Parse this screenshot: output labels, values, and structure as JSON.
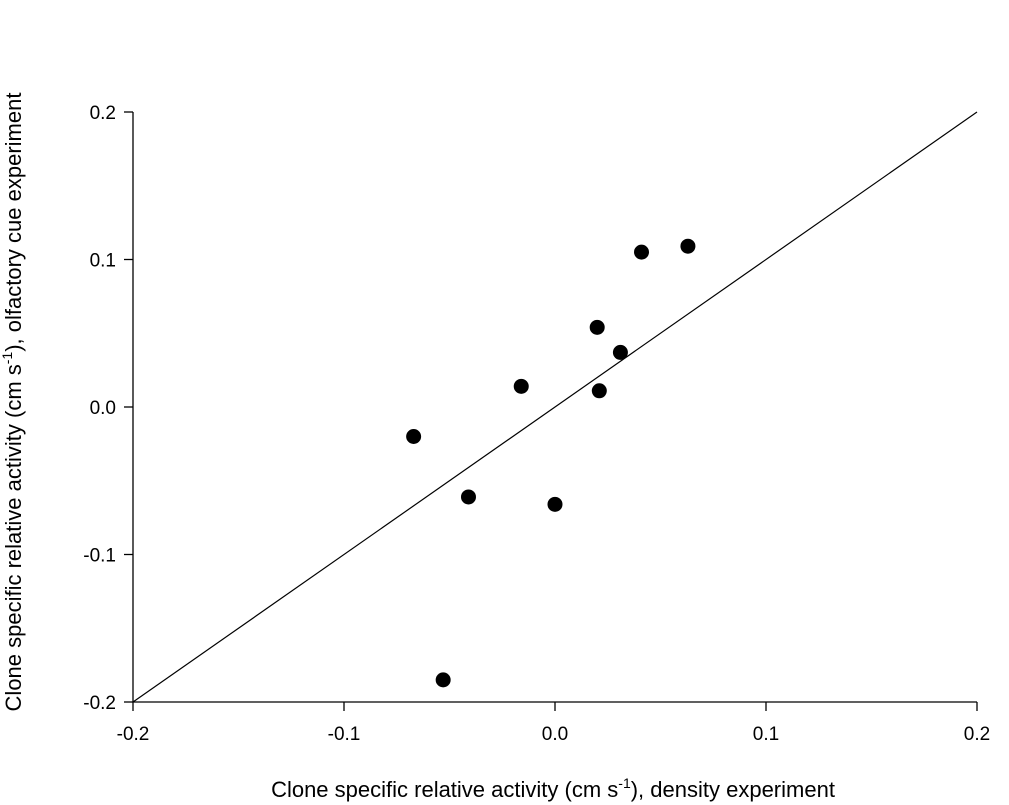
{
  "chart_data": {
    "type": "scatter",
    "title": "",
    "xlabel": {
      "before": "Clone specific relative activity (cm s",
      "sup": "-1",
      "after": "), density experiment"
    },
    "ylabel": {
      "before": "Clone specific relative activity (cm s",
      "sup": "-1",
      "after": "), olfactory cue experiment"
    },
    "xlim": [
      -0.2,
      0.2
    ],
    "ylim": [
      -0.2,
      0.2
    ],
    "x_ticks": [
      -0.2,
      -0.1,
      0.0,
      0.1,
      0.2
    ],
    "y_ticks": [
      -0.2,
      -0.1,
      0.0,
      0.1,
      0.2
    ],
    "x_tick_labels": [
      "-0.2",
      "-0.1",
      "0.0",
      "0.1",
      "0.2"
    ],
    "y_tick_labels": [
      "-0.2",
      "-0.1",
      "0.0",
      "0.1",
      "0.2"
    ],
    "grid": false,
    "marker_color": "#000000",
    "line_color": "#000000",
    "reference_line": {
      "x": [
        -0.2,
        0.2
      ],
      "y": [
        -0.2,
        0.2
      ]
    },
    "points": [
      {
        "x": -0.067,
        "y": -0.02
      },
      {
        "x": -0.053,
        "y": -0.185
      },
      {
        "x": -0.041,
        "y": -0.061
      },
      {
        "x": -0.016,
        "y": 0.014
      },
      {
        "x": 0.0,
        "y": -0.066
      },
      {
        "x": 0.02,
        "y": 0.054
      },
      {
        "x": 0.021,
        "y": 0.011
      },
      {
        "x": 0.031,
        "y": 0.037
      },
      {
        "x": 0.041,
        "y": 0.105
      },
      {
        "x": 0.063,
        "y": 0.109
      }
    ]
  }
}
